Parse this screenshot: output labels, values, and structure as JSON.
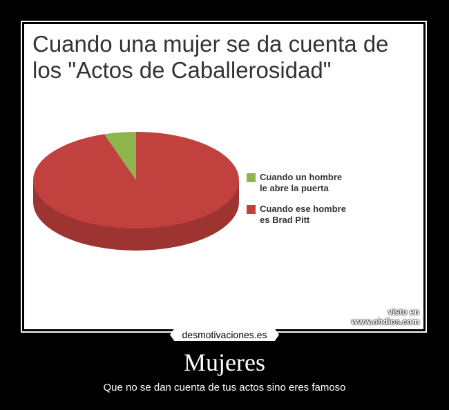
{
  "chart_data": {
    "type": "pie",
    "title": "Cuando una mujer se da cuenta de\nlos \"Actos de Caballerosidad\"",
    "slices": [
      {
        "label": "Cuando un hombre le abre la puerta",
        "value": 5,
        "color": "#8db64c"
      },
      {
        "label": "Cuando ese hombre es Brad Pitt",
        "value": 95,
        "color": "#c0413e"
      }
    ],
    "legend_position": "right",
    "three_d": true
  },
  "watermark": {
    "line1": "visto en",
    "line2": "www.ohdios.com"
  },
  "brand": "desmotivaciones.es",
  "poster": {
    "headline": "Mujeres",
    "caption": "Que no se dan cuenta de tus actos sino eres famoso"
  }
}
